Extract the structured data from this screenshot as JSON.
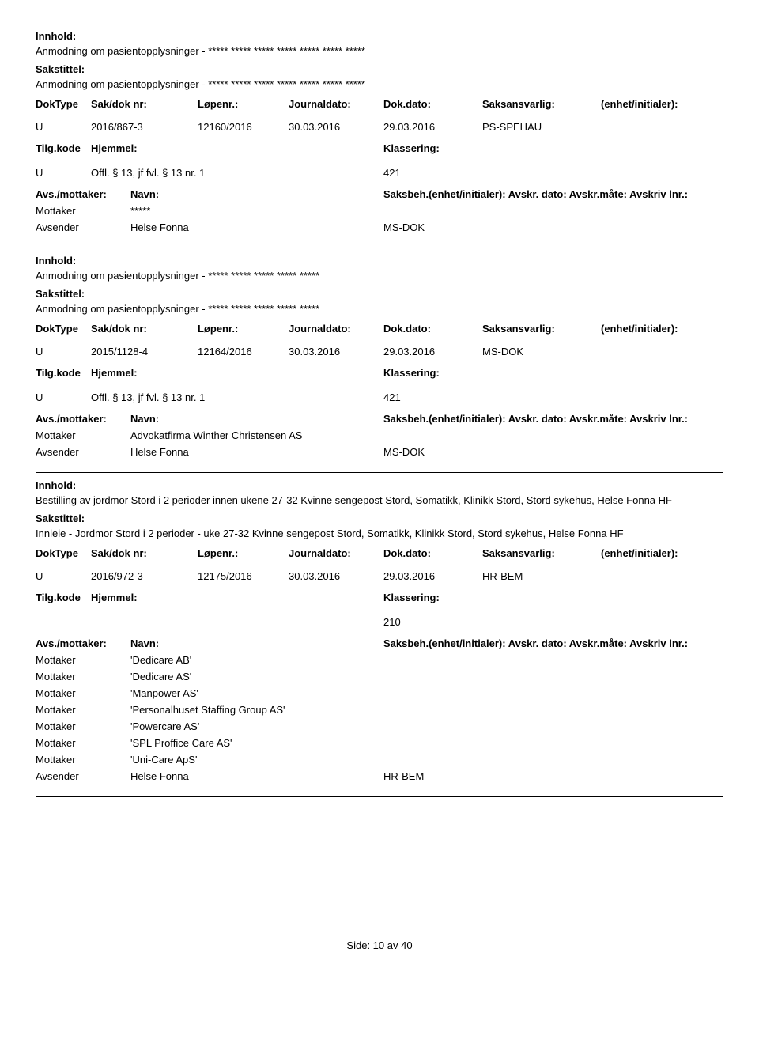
{
  "labels": {
    "innhold": "Innhold:",
    "sakstittel": "Sakstittel:",
    "doktype": "DokType",
    "sakdoknr": "Sak/dok nr:",
    "lopenr": "Løpenr.:",
    "journaldato": "Journaldato:",
    "dokdato": "Dok.dato:",
    "saksansvarlig": "Saksansvarlig:",
    "enhet": "(enhet/initialer):",
    "tilgkode": "Tilg.kode",
    "hjemmel": "Hjemmel:",
    "klassering": "Klassering:",
    "avs_mottaker": "Avs./mottaker:",
    "navn": "Navn:",
    "saksbeh_full": "Saksbeh.(enhet/initialer): Avskr. dato:  Avskr.måte:  Avskriv lnr.:",
    "side": "Side:",
    "av": "av"
  },
  "footer": {
    "page": "10",
    "total": "40"
  },
  "records": [
    {
      "innhold": "Anmodning om pasientopplysninger - ***** ***** ***** ***** ***** ***** *****",
      "sakstittel": "Anmodning om pasientopplysninger - ***** ***** ***** ***** ***** ***** *****",
      "doktype": "U",
      "sakdoknr": "2016/867-3",
      "lopenr": "12160/2016",
      "journaldato": "30.03.2016",
      "dokdato": "29.03.2016",
      "saksansvarlig": "PS-SPEHAU",
      "enhet": "",
      "tilgkode": "U",
      "hjemmel": "Offl. § 13, jf fvl. § 13 nr. 1",
      "klassering": "421",
      "parties": [
        {
          "role": "Mottaker",
          "name": "*****",
          "unit": ""
        },
        {
          "role": "Avsender",
          "name": "Helse Fonna",
          "unit": "MS-DOK"
        }
      ]
    },
    {
      "innhold": "Anmodning om pasientopplysninger - ***** ***** ***** ***** *****",
      "sakstittel": "Anmodning om pasientopplysninger - ***** ***** ***** ***** *****",
      "doktype": "U",
      "sakdoknr": "2015/1128-4",
      "lopenr": "12164/2016",
      "journaldato": "30.03.2016",
      "dokdato": "29.03.2016",
      "saksansvarlig": "MS-DOK",
      "enhet": "",
      "tilgkode": "U",
      "hjemmel": "Offl. § 13, jf fvl. § 13 nr. 1",
      "klassering": "421",
      "parties": [
        {
          "role": "Mottaker",
          "name": "Advokatfirma Winther Christensen AS",
          "unit": ""
        },
        {
          "role": "Avsender",
          "name": "Helse Fonna",
          "unit": "MS-DOK"
        }
      ]
    },
    {
      "innhold": "Bestilling av jordmor Stord i 2 perioder innen ukene 27-32 Kvinne sengepost Stord, Somatikk, Klinikk Stord, Stord sykehus, Helse Fonna HF",
      "sakstittel": "Innleie - Jordmor Stord i 2 perioder - uke 27-32 Kvinne sengepost Stord, Somatikk, Klinikk Stord, Stord sykehus, Helse Fonna HF",
      "doktype": "U",
      "sakdoknr": "2016/972-3",
      "lopenr": "12175/2016",
      "journaldato": "30.03.2016",
      "dokdato": "29.03.2016",
      "saksansvarlig": "HR-BEM",
      "enhet": "",
      "tilgkode": "",
      "hjemmel": "",
      "klassering": "210",
      "parties": [
        {
          "role": "Mottaker",
          "name": "'Dedicare AB'",
          "unit": ""
        },
        {
          "role": "Mottaker",
          "name": "'Dedicare AS'",
          "unit": ""
        },
        {
          "role": "Mottaker",
          "name": "'Manpower AS'",
          "unit": ""
        },
        {
          "role": "Mottaker",
          "name": "'Personalhuset Staffing Group AS'",
          "unit": ""
        },
        {
          "role": "Mottaker",
          "name": "'Powercare AS'",
          "unit": ""
        },
        {
          "role": "Mottaker",
          "name": "'SPL Proffice Care AS'",
          "unit": ""
        },
        {
          "role": "Mottaker",
          "name": "'Uni-Care ApS'",
          "unit": ""
        },
        {
          "role": "Avsender",
          "name": "Helse Fonna",
          "unit": "HR-BEM"
        }
      ]
    }
  ]
}
